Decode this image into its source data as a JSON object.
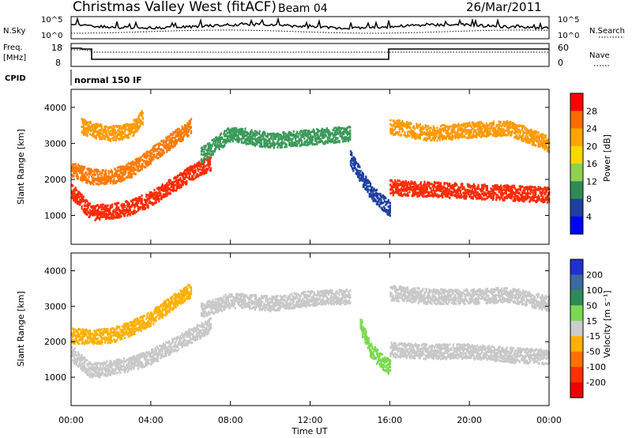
{
  "header": {
    "station": "Christmas Valley West (fitACF)",
    "beam": "Beam 04",
    "date": "26/Mar/2011"
  },
  "top_panels": {
    "nsky_label": "N.Sky",
    "nsearch_label": "N.Search",
    "nsky_ticks": [
      "10^5",
      "10^0"
    ],
    "nsearch_ticks": [
      "10^5",
      "10^0"
    ],
    "freq_label": "Freq.",
    "freq_unit": "[MHz]",
    "freq_ticks": [
      "18",
      "8"
    ],
    "nave_label": "Nave",
    "nave_ticks": [
      "60",
      "0"
    ],
    "cpid_label": "CPID",
    "cpid_value": "normal 150 IF"
  },
  "chart_data": [
    {
      "type": "heatmap",
      "name": "power",
      "ylabel": "Slant Range [km]",
      "yticks": [
        "1000",
        "2000",
        "3000",
        "4000"
      ],
      "ylim": [
        200,
        4500
      ],
      "xlim": [
        0,
        24
      ],
      "colorbar_label": "Power [dB]",
      "colorbar_ticks": [
        "28",
        "24",
        "20",
        "16",
        "12",
        "8",
        "4"
      ],
      "colorbar_colors": [
        "#ff0000",
        "#ff6a00",
        "#ffa500",
        "#ffd700",
        "#8fd14f",
        "#2e8b57",
        "#1e3fa0",
        "#0000ff"
      ],
      "bands": [
        {
          "x": [
            0,
            1,
            2,
            3,
            4,
            5,
            6,
            7
          ],
          "y": [
            1700,
            1100,
            1150,
            1250,
            1500,
            1850,
            2200,
            2500
          ],
          "color": "#ff2a00"
        },
        {
          "x": [
            0,
            1,
            2,
            3,
            4,
            5,
            6
          ],
          "y": [
            2300,
            2100,
            2100,
            2300,
            2700,
            3100,
            3500
          ],
          "color": "#ff7a00"
        },
        {
          "x": [
            0.5,
            1,
            2,
            3,
            3.6
          ],
          "y": [
            3500,
            3400,
            3300,
            3400,
            3800
          ],
          "color": "#ff9a00"
        },
        {
          "x": [
            6.5,
            8,
            10,
            12,
            14
          ],
          "y": [
            2700,
            3300,
            3100,
            3200,
            3300
          ],
          "color": "#3a9a5a"
        },
        {
          "x": [
            14,
            15,
            16
          ],
          "y": [
            2600,
            1700,
            1200
          ],
          "color": "#1e3fa0"
        },
        {
          "x": [
            16,
            18,
            20,
            22,
            24
          ],
          "y": [
            1800,
            1750,
            1700,
            1650,
            1600
          ],
          "color": "#ff2a00"
        },
        {
          "x": [
            16,
            18,
            20,
            22,
            24
          ],
          "y": [
            3500,
            3300,
            3400,
            3450,
            3000
          ],
          "color": "#ff9a00"
        }
      ]
    },
    {
      "type": "heatmap",
      "name": "velocity",
      "ylabel": "Slant Range [km]",
      "yticks": [
        "1000",
        "2000",
        "3000",
        "4000"
      ],
      "ylim": [
        200,
        4500
      ],
      "xlim": [
        0,
        24
      ],
      "xticks": [
        "00:00",
        "04:00",
        "08:00",
        "12:00",
        "16:00",
        "20:00",
        "00:00"
      ],
      "xlabel": "Time UT",
      "colorbar_label": "Velocity [m s⁻¹]",
      "colorbar_ticks": [
        "200",
        "100",
        "50",
        "15",
        "-15",
        "-50",
        "-100",
        "-200"
      ],
      "colorbar_colors": [
        "#2030d0",
        "#3a6aa0",
        "#2e8b57",
        "#7cd94f",
        "#cccccc",
        "#ffb000",
        "#ff7000",
        "#ff3000",
        "#ee0000"
      ],
      "bands": [
        {
          "x": [
            0,
            1,
            2,
            3,
            4,
            5,
            6,
            7
          ],
          "y": [
            1700,
            1200,
            1300,
            1400,
            1600,
            1900,
            2200,
            2500
          ],
          "color": "#c8c8c8"
        },
        {
          "x": [
            0,
            1,
            2,
            3,
            4,
            5,
            6
          ],
          "y": [
            2200,
            2150,
            2200,
            2400,
            2700,
            3100,
            3500
          ],
          "color": "#ffb000"
        },
        {
          "x": [
            6.5,
            8,
            10,
            12,
            14
          ],
          "y": [
            2900,
            3200,
            3100,
            3250,
            3300
          ],
          "color": "#c8c8c8"
        },
        {
          "x": [
            14.5,
            15,
            15.5,
            16
          ],
          "y": [
            2500,
            1800,
            1500,
            1300
          ],
          "color": "#7cd94f"
        },
        {
          "x": [
            16,
            18,
            20,
            22,
            24
          ],
          "y": [
            1800,
            1750,
            1750,
            1650,
            1600
          ],
          "color": "#c8c8c8"
        },
        {
          "x": [
            16,
            18,
            20,
            22,
            24
          ],
          "y": [
            3400,
            3300,
            3300,
            3350,
            3100
          ],
          "color": "#c8c8c8"
        }
      ]
    }
  ]
}
